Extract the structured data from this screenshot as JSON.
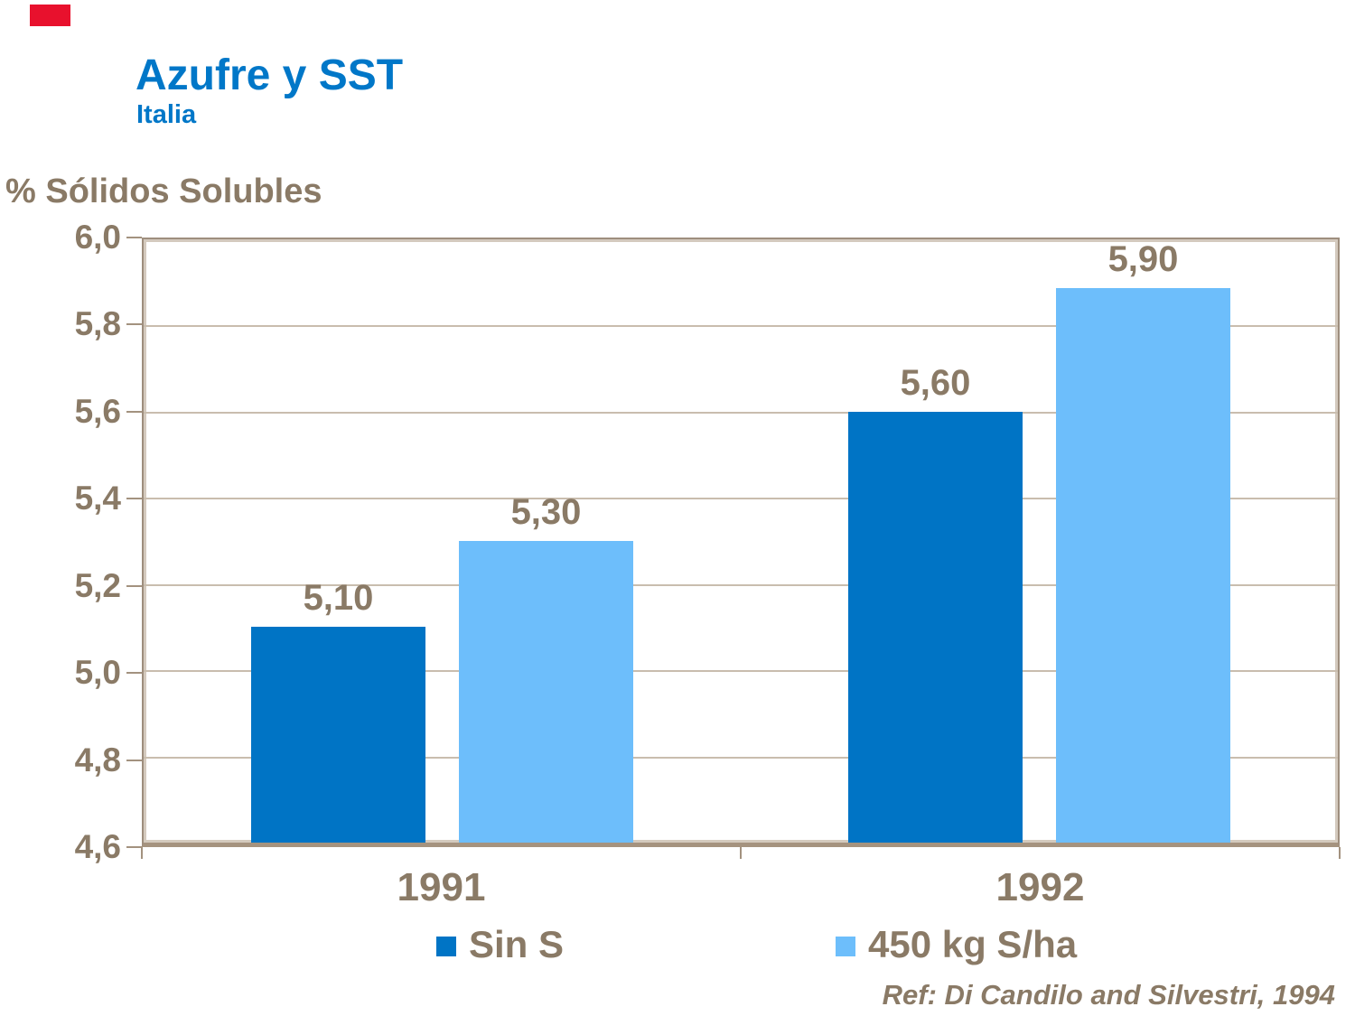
{
  "chart_data": {
    "type": "bar",
    "title": "Azufre y SST",
    "subtitle": "Italia",
    "ylabel": "% Sólidos Solubles",
    "xlabel": "",
    "categories": [
      "1991",
      "1992"
    ],
    "series": [
      {
        "name": "Sin S",
        "color": "#0074C5",
        "values": [
          5.1,
          5.6
        ],
        "value_labels": [
          "5,10",
          "5,60"
        ]
      },
      {
        "name": "450 kg S/ha",
        "color": "#6DBEFB",
        "values": [
          5.3,
          5.9
        ],
        "value_labels": [
          "5,30",
          "5,90"
        ]
      }
    ],
    "ylim": [
      4.6,
      6.0
    ],
    "ytick_values": [
      6.0,
      5.8,
      5.6,
      5.4,
      5.2,
      5.0,
      4.8,
      4.6
    ],
    "ytick_labels": [
      "6,0",
      "5,8",
      "5,6",
      "5,4",
      "5,2",
      "5,0",
      "4,8",
      "4,6"
    ],
    "grid": true,
    "legend_position": "bottom",
    "reference": "Ref: Di Candilo and Silvestri, 1994"
  },
  "colors": {
    "title_blue": "#0077C8",
    "text_brown": "#8A7A66",
    "gridline": "#C9BDAE",
    "axis_frame": "#9E8E7E",
    "corner_mark_red": "#E8112D"
  }
}
